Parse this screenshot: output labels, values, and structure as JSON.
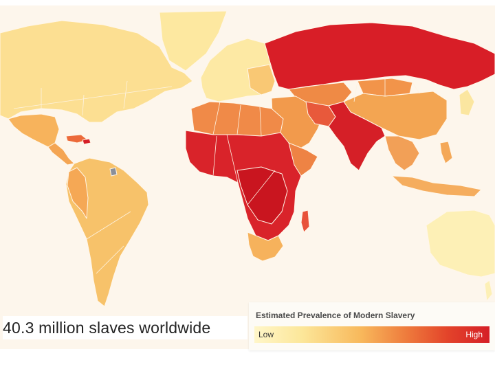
{
  "caption": "40.3 million slaves worldwide",
  "legend": {
    "title": "Estimated Prevalence of Modern Slavery",
    "low_label": "Low",
    "high_label": "High"
  },
  "colors": {
    "ocean": "#fdf6ec",
    "scale": [
      "#fff6c9",
      "#fce79a",
      "#f8b95c",
      "#ee7a3c",
      "#e3442a",
      "#d51f27"
    ]
  },
  "regions": [
    {
      "name": "North America",
      "level": 1
    },
    {
      "name": "Greenland",
      "level": 1
    },
    {
      "name": "Mexico",
      "level": 2
    },
    {
      "name": "Central America",
      "level": 2
    },
    {
      "name": "Caribbean",
      "level": 3
    },
    {
      "name": "South America",
      "level": 2
    },
    {
      "name": "Europe",
      "level": 1
    },
    {
      "name": "Russia",
      "level": 5
    },
    {
      "name": "Central Asia",
      "level": 4
    },
    {
      "name": "Middle East",
      "level": 3
    },
    {
      "name": "South Asia",
      "level": 5
    },
    {
      "name": "China",
      "level": 3
    },
    {
      "name": "Southeast Asia",
      "level": 3
    },
    {
      "name": "North Africa",
      "level": 3
    },
    {
      "name": "Sub-Saharan Africa",
      "level": 5
    },
    {
      "name": "Southern Africa",
      "level": 2
    },
    {
      "name": "Australia",
      "level": 1
    }
  ]
}
